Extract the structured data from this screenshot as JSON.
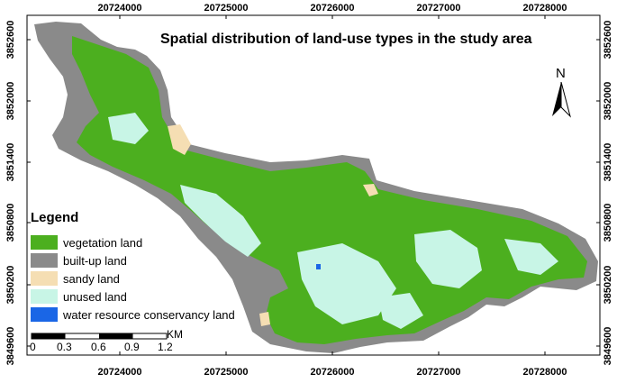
{
  "map": {
    "title": "Spatial distribution of land-use types in the study area",
    "x_ticks_top": [
      "20724000",
      "20725000",
      "20726000",
      "20727000",
      "20728000"
    ],
    "x_ticks_bottom": [
      "20724000",
      "20725000",
      "20726000",
      "20727000",
      "20728000"
    ],
    "y_ticks_left": [
      "3852600",
      "3852000",
      "3851400",
      "3850800",
      "3850200",
      "3849600"
    ],
    "y_ticks_right": [
      "3852600",
      "3852000",
      "3851400",
      "3850800",
      "3850200",
      "3849600"
    ],
    "north_label": "N"
  },
  "legend": {
    "title": "Legend",
    "items": [
      {
        "label": "vegetation land",
        "color": "#4caf1f"
      },
      {
        "label": "built-up land",
        "color": "#8a8a8a"
      },
      {
        "label": "sandy land",
        "color": "#f5deb3"
      },
      {
        "label": "unused land",
        "color": "#c8f5e6"
      },
      {
        "label": "water resource conservancy land",
        "color": "#1a66e6"
      }
    ]
  },
  "scale_bar": {
    "labels": [
      "0",
      "0.3",
      "0.6",
      "0.9",
      "1.2"
    ],
    "unit": "KM"
  }
}
